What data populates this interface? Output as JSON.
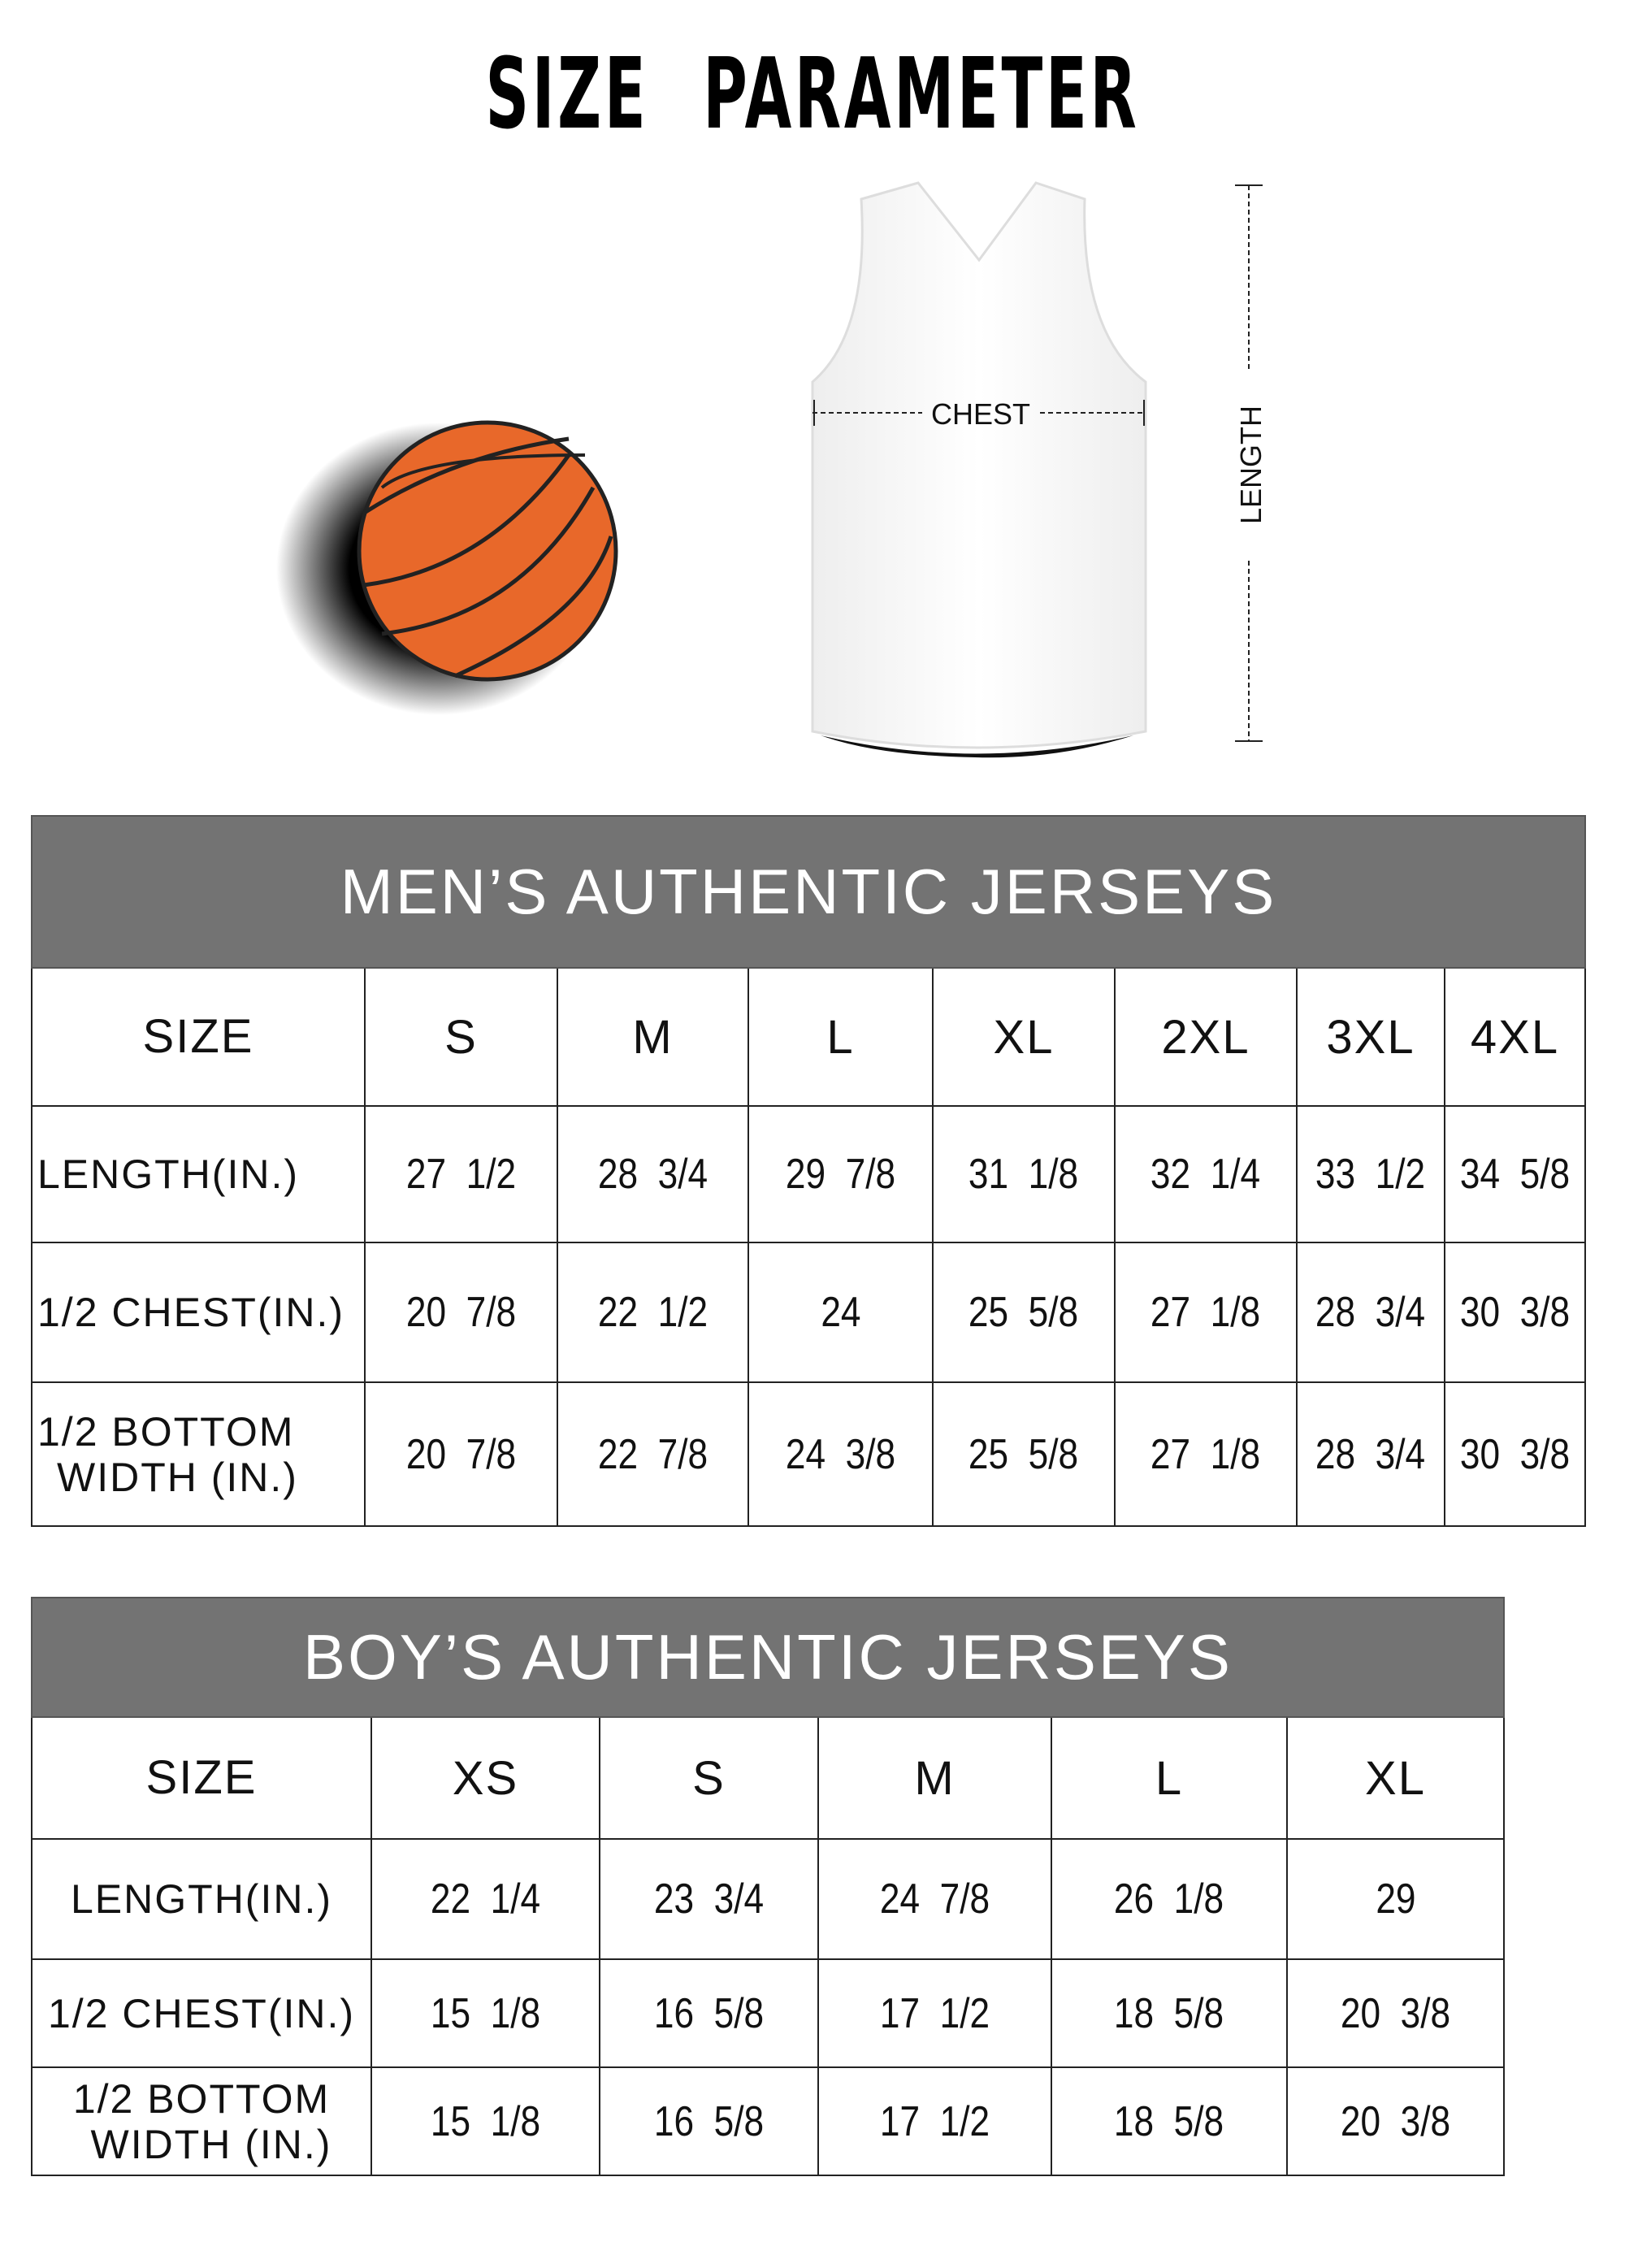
{
  "title": "SIZE PARAMETER",
  "diagram": {
    "chest_label": "CHEST",
    "length_label": "LENGTH",
    "ball_color": "#e8682a",
    "header_color": "#737373"
  },
  "mens": {
    "title": "MEN’S AUTHENTIC JERSEYS",
    "size_label": "SIZE",
    "sizes": [
      "S",
      "M",
      "L",
      "XL",
      "2XL",
      "3XL",
      "4XL"
    ],
    "rows": [
      {
        "label": "LENGTH(IN.)",
        "values": [
          "27  1/2",
          "28  3/4",
          "29  7/8",
          "31  1/8",
          "32  1/4",
          "33  1/2",
          "34  5/8"
        ]
      },
      {
        "label": "1/2 CHEST(IN.)",
        "values": [
          "20  7/8",
          "22  1/2",
          "24",
          "25  5/8",
          "27  1/8",
          "28  3/4",
          "30  3/8"
        ]
      },
      {
        "label": "1/2 BOTTOM\nWIDTH  (IN.)",
        "values": [
          "20  7/8",
          "22  7/8",
          "24  3/8",
          "25  5/8",
          "27  1/8",
          "28  3/4",
          "30  3/8"
        ]
      }
    ]
  },
  "boys": {
    "title": "BOY’S AUTHENTIC JERSEYS",
    "size_label": "SIZE",
    "sizes": [
      "XS",
      "S",
      "M",
      "L",
      "XL"
    ],
    "rows": [
      {
        "label": "LENGTH(IN.)",
        "values": [
          "22  1/4",
          "23  3/4",
          "24  7/8",
          "26  1/8",
          "29"
        ]
      },
      {
        "label": "1/2 CHEST(IN.)",
        "values": [
          "15  1/8",
          "16  5/8",
          "17  1/2",
          "18  5/8",
          "20  3/8"
        ]
      },
      {
        "label": "1/2 BOTTOM\nWIDTH  (IN.)",
        "values": [
          "15  1/8",
          "16  5/8",
          "17  1/2",
          "18  5/8",
          "20  3/8"
        ]
      }
    ]
  }
}
